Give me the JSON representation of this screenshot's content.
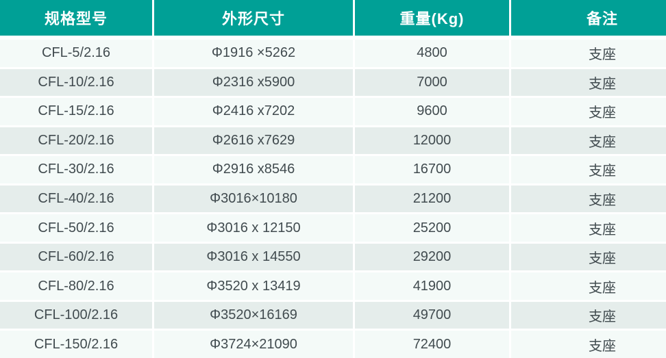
{
  "table": {
    "columns": [
      {
        "key": "model",
        "label": "规格型号"
      },
      {
        "key": "dimensions",
        "label": "外形尺寸"
      },
      {
        "key": "weight",
        "label": "重量(Kg)"
      },
      {
        "key": "remark",
        "label": "备注"
      }
    ],
    "rows": [
      {
        "model": "CFL-5/2.16",
        "dimensions": "Φ1916 ×5262",
        "weight": "4800",
        "remark": "支座"
      },
      {
        "model": "CFL-10/2.16",
        "dimensions": "Φ2316 x5900",
        "weight": "7000",
        "remark": "支座"
      },
      {
        "model": "CFL-15/2.16",
        "dimensions": "Φ2416 x7202",
        "weight": "9600",
        "remark": "支座"
      },
      {
        "model": "CFL-20/2.16",
        "dimensions": "Φ2616 x7629",
        "weight": "12000",
        "remark": "支座"
      },
      {
        "model": "CFL-30/2.16",
        "dimensions": "Φ2916 x8546",
        "weight": "16700",
        "remark": "支座"
      },
      {
        "model": "CFL-40/2.16",
        "dimensions": "Φ3016×10180",
        "weight": "21200",
        "remark": "支座"
      },
      {
        "model": "CFL-50/2.16",
        "dimensions": "Φ3016 x 12150",
        "weight": "25200",
        "remark": "支座"
      },
      {
        "model": "CFL-60/2.16",
        "dimensions": "Φ3016 x 14550",
        "weight": "29200",
        "remark": "支座"
      },
      {
        "model": "CFL-80/2.16",
        "dimensions": "Φ3520 x 13419",
        "weight": "41900",
        "remark": "支座"
      },
      {
        "model": "CFL-100/2.16",
        "dimensions": "Φ3520×16169",
        "weight": "49700",
        "remark": "支座"
      },
      {
        "model": "CFL-150/2.16",
        "dimensions": "Φ3724×21090",
        "weight": "72400",
        "remark": "支座"
      }
    ]
  },
  "colors": {
    "header_bg": "#00a096",
    "header_text": "#ffffff",
    "row_light": "#f4faf8",
    "row_dark": "#e5edeb",
    "gap": "#ffffff",
    "text": "#414b4f"
  }
}
